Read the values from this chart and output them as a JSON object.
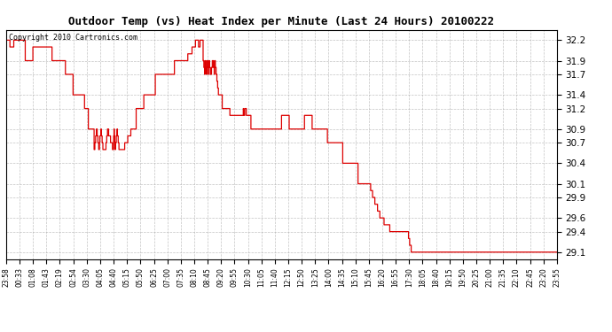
{
  "title": "Outdoor Temp (vs) Heat Index per Minute (Last 24 Hours) 20100222",
  "copyright": "Copyright 2010 Cartronics.com",
  "line_color": "#dd0000",
  "background_color": "#ffffff",
  "grid_color": "#aaaaaa",
  "ylim": [
    29.0,
    32.35
  ],
  "yticks": [
    29.1,
    29.4,
    29.6,
    29.9,
    30.1,
    30.4,
    30.7,
    30.9,
    31.2,
    31.4,
    31.7,
    31.9,
    32.2
  ],
  "x_labels": [
    "23:58",
    "00:33",
    "01:08",
    "01:43",
    "02:19",
    "02:54",
    "03:30",
    "04:05",
    "04:40",
    "05:15",
    "05:50",
    "06:25",
    "07:00",
    "07:35",
    "08:10",
    "08:45",
    "09:20",
    "09:55",
    "10:30",
    "11:05",
    "11:40",
    "12:15",
    "12:50",
    "13:25",
    "14:00",
    "14:35",
    "15:10",
    "15:45",
    "16:20",
    "16:55",
    "17:30",
    "18:05",
    "18:40",
    "19:15",
    "19:50",
    "20:25",
    "21:00",
    "21:35",
    "22:10",
    "22:45",
    "23:20",
    "23:55"
  ],
  "data_y": [
    32.2,
    32.2,
    32.2,
    32.2,
    32.2,
    32.2,
    32.1,
    32.1,
    31.9,
    31.9,
    31.9,
    31.9,
    31.9,
    32.1,
    32.1,
    32.1,
    32.1,
    31.9,
    31.9,
    31.9,
    31.9,
    31.7,
    31.7,
    31.4,
    31.4,
    31.2,
    30.9,
    30.9,
    30.9,
    30.6,
    30.9,
    30.6,
    30.9,
    30.6,
    30.9,
    30.6,
    30.9,
    30.9,
    30.9,
    30.9,
    30.9,
    30.9,
    31.2,
    31.2,
    31.4,
    31.4,
    31.7,
    31.7,
    31.7,
    31.9,
    31.9,
    32.2,
    32.1,
    31.9,
    31.9,
    31.9,
    31.9,
    31.9,
    31.7,
    31.7,
    31.7,
    31.7,
    31.9,
    31.9,
    31.7,
    31.7,
    31.9,
    31.9,
    31.7,
    31.7,
    31.9,
    31.7,
    31.4,
    31.2,
    31.2,
    31.2,
    31.1,
    31.1,
    31.1,
    31.1,
    31.1,
    31.1,
    31.2,
    31.1,
    31.1,
    31.2,
    31.1,
    31.1,
    31.1,
    31.2,
    31.1,
    30.9,
    30.9,
    30.9,
    30.9,
    30.9,
    30.9,
    30.9,
    30.9,
    31.1,
    31.1,
    31.1,
    31.1,
    30.9,
    30.9,
    30.7,
    30.7,
    30.7,
    30.7,
    30.4,
    30.4,
    30.4,
    30.4,
    30.4,
    30.1,
    30.1,
    29.9,
    29.6,
    29.4,
    29.1
  ]
}
